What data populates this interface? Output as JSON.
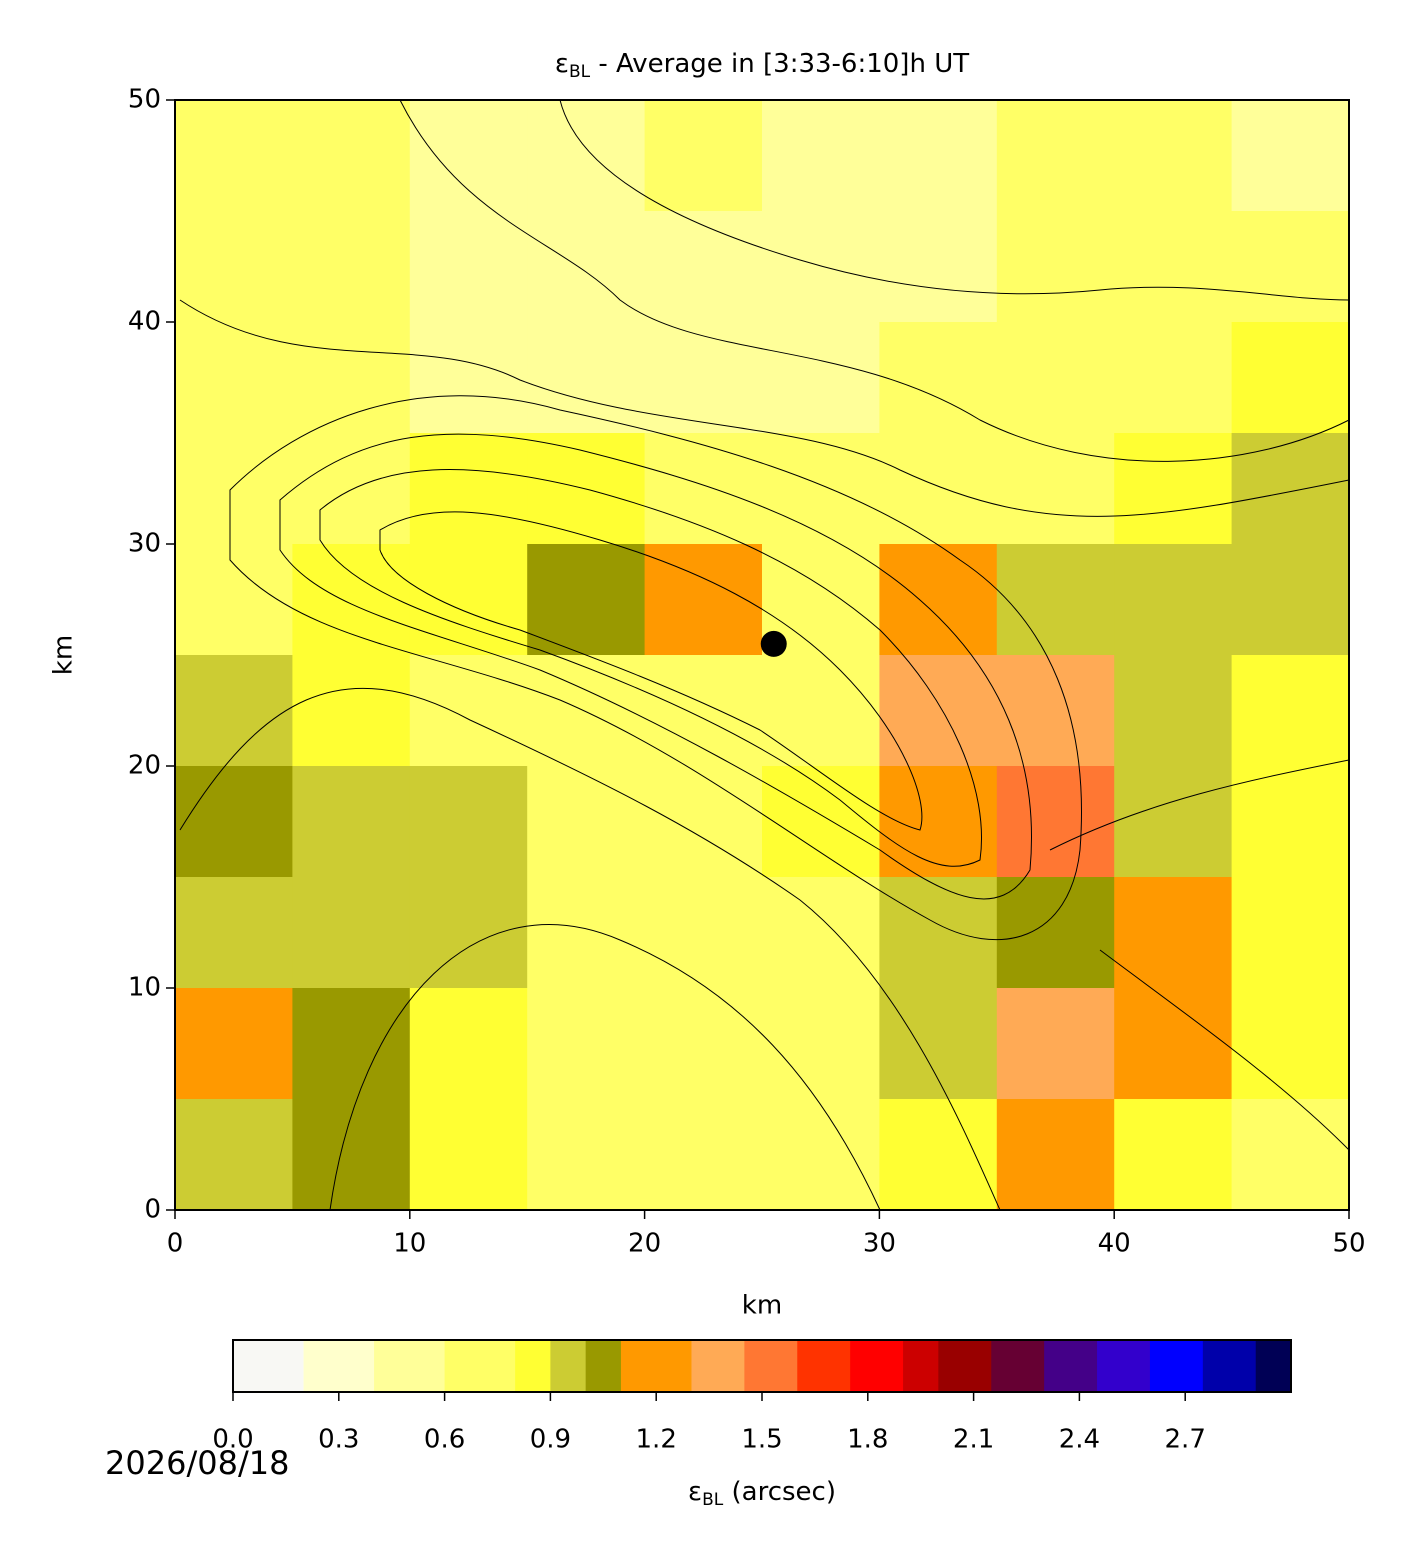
{
  "chart_data": {
    "type": "heatmap",
    "title": {
      "symbol": "ε",
      "subscript": "BL",
      "text": " - Average in [3:33-6:10]h UT"
    },
    "xlabel": "km",
    "ylabel": "km",
    "x": [
      2.5,
      7.5,
      12.5,
      17.5,
      22.5,
      27.5,
      32.5,
      37.5,
      42.5,
      47.5
    ],
    "y": [
      47.5,
      42.5,
      37.5,
      32.5,
      27.5,
      22.5,
      17.5,
      12.5,
      7.5,
      2.5
    ],
    "values": [
      [
        0.7,
        0.6,
        0.5,
        0.5,
        0.6,
        0.5,
        0.5,
        0.6,
        0.6,
        0.5
      ],
      [
        0.6,
        0.6,
        0.5,
        0.5,
        0.5,
        0.5,
        0.5,
        0.6,
        0.6,
        0.6
      ],
      [
        0.6,
        0.6,
        0.5,
        0.5,
        0.5,
        0.5,
        0.6,
        0.6,
        0.7,
        0.8
      ],
      [
        0.6,
        0.7,
        0.8,
        0.8,
        0.7,
        0.6,
        0.7,
        0.7,
        0.8,
        0.9
      ],
      [
        0.7,
        0.8,
        0.8,
        1.0,
        1.2,
        0.7,
        1.1,
        0.9,
        0.9,
        0.9
      ],
      [
        0.9,
        0.8,
        0.7,
        0.6,
        0.6,
        0.7,
        1.4,
        1.3,
        0.9,
        0.8
      ],
      [
        1.0,
        0.9,
        0.9,
        0.7,
        0.6,
        0.8,
        1.1,
        1.5,
        0.9,
        0.8
      ],
      [
        0.9,
        0.9,
        0.9,
        0.7,
        0.6,
        0.7,
        0.9,
        1.0,
        1.1,
        0.8
      ],
      [
        1.1,
        1.0,
        0.8,
        0.6,
        0.6,
        0.7,
        0.9,
        1.3,
        1.1,
        0.8
      ],
      [
        0.9,
        1.0,
        0.8,
        0.6,
        0.6,
        0.6,
        0.8,
        1.2,
        0.8,
        0.7
      ]
    ],
    "xlim": [
      0,
      50
    ],
    "ylim": [
      0,
      50
    ],
    "xticks": [
      0,
      10,
      20,
      30,
      40,
      50
    ],
    "yticks": [
      0,
      10,
      20,
      30,
      40,
      50
    ],
    "point": {
      "x": 25.5,
      "y": 25.5,
      "color": "#000000"
    },
    "colorbar": {
      "label": {
        "symbol": "ε",
        "subscript": "BL",
        "text": " (arcsec)"
      },
      "lim": [
        0,
        3
      ],
      "ticks": [
        {
          "value": 0,
          "label": "0.0"
        },
        {
          "value": 0.3,
          "label": "0.3"
        },
        {
          "value": 0.6,
          "label": "0.6"
        },
        {
          "value": 0.9,
          "label": "0.9"
        },
        {
          "value": 1.2,
          "label": "1.2"
        },
        {
          "value": 1.5,
          "label": "1.5"
        },
        {
          "value": 1.8,
          "label": "1.8"
        },
        {
          "value": 2.1,
          "label": "2.1"
        },
        {
          "value": 2.4,
          "label": "2.4"
        },
        {
          "value": 2.7,
          "label": "2.7"
        }
      ],
      "colormap": [
        {
          "value": 0,
          "color": "#f8f8f4"
        },
        {
          "value": 0.2,
          "color": "#ffffcc"
        },
        {
          "value": 0.4,
          "color": "#ffff99"
        },
        {
          "value": 0.6,
          "color": "#ffff66"
        },
        {
          "value": 0.8,
          "color": "#ffff33"
        },
        {
          "value": 0.9,
          "color": "#cccc33"
        },
        {
          "value": 1.0,
          "color": "#999900"
        },
        {
          "value": 1.1,
          "color": "#ff9900"
        },
        {
          "value": 1.3,
          "color": "#ffaa55"
        },
        {
          "value": 1.45,
          "color": "#ff7733"
        },
        {
          "value": 1.6,
          "color": "#ff3300"
        },
        {
          "value": 1.75,
          "color": "#ff0000"
        },
        {
          "value": 1.9,
          "color": "#cc0000"
        },
        {
          "value": 2.0,
          "color": "#990000"
        },
        {
          "value": 2.15,
          "color": "#660033"
        },
        {
          "value": 2.3,
          "color": "#440088"
        },
        {
          "value": 2.45,
          "color": "#3300cc"
        },
        {
          "value": 2.6,
          "color": "#0000ff"
        },
        {
          "value": 2.75,
          "color": "#0000aa"
        },
        {
          "value": 2.9,
          "color": "#000055"
        }
      ]
    },
    "annotation": "2026/08/18"
  }
}
